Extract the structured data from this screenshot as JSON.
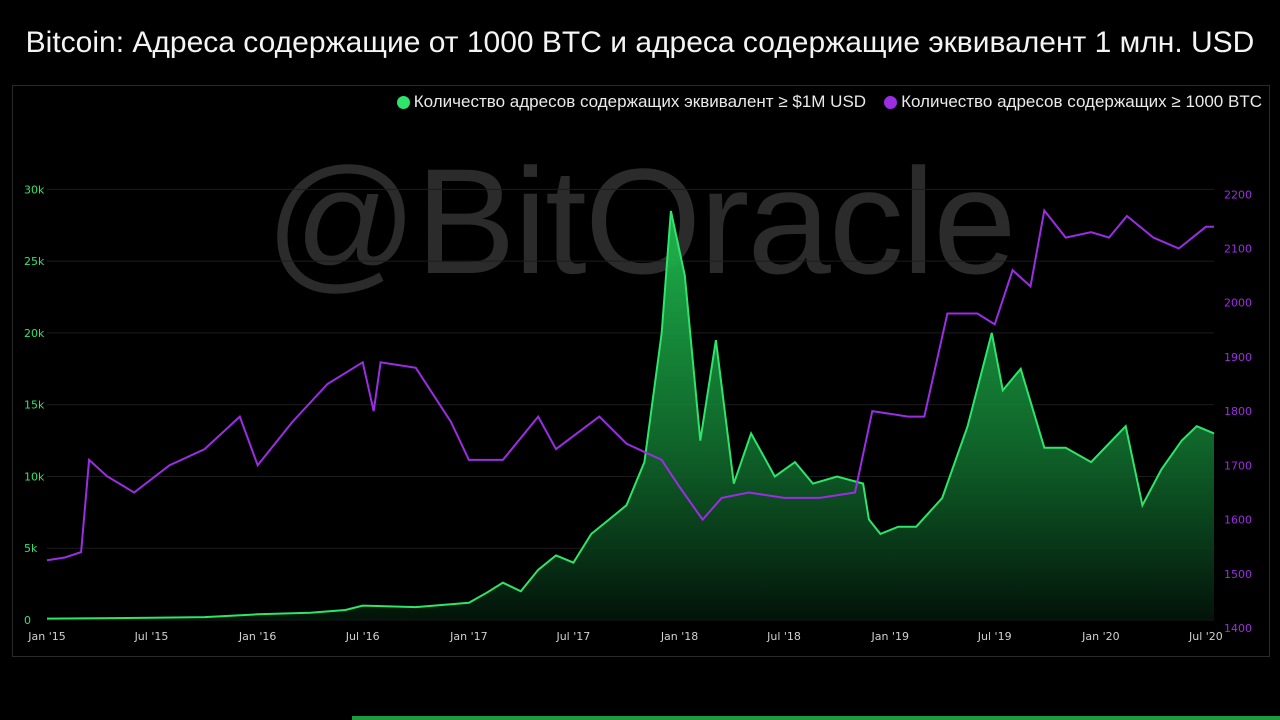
{
  "title": "Bitcoin: Адреса содержащие от 1000 BTC и адреса содержащие эквивалент 1 млн. USD",
  "watermark": "@BitOracle",
  "legend": {
    "green_label": "Количество адресов содержащих эквивалент ≥ $1M USD",
    "purple_label": "Количество адресов содержащих  ≥ 1000 BTC"
  },
  "colors": {
    "green": "#2ee46a",
    "purple": "#9b2de3",
    "background": "#000000"
  },
  "chart_data": {
    "type": "line",
    "x_ticks": [
      "Jan '15",
      "Jul '15",
      "Jan '16",
      "Jul '16",
      "Jan '17",
      "Jul '17",
      "Jan '18",
      "Jul '18",
      "Jan '19",
      "Jul '19",
      "Jan '20",
      "Jul '20"
    ],
    "y_left": {
      "ticks": [
        "0",
        "5k",
        "10k",
        "15k",
        "20k",
        "25k",
        "30k"
      ],
      "range": [
        0,
        31000
      ]
    },
    "y_right": {
      "ticks": [
        "1400",
        "1500",
        "1600",
        "1700",
        "1800",
        "1900",
        "2000",
        "2100",
        "2200"
      ],
      "range": [
        1400,
        2230
      ]
    },
    "x_range": [
      "2015-01-01",
      "2020-07-15"
    ],
    "series": [
      {
        "name": "Количество адресов содержащих эквивалент ≥ $1M USD",
        "axis": "left",
        "style": "area",
        "points": [
          [
            "2015-01-01",
            100
          ],
          [
            "2015-04-01",
            120
          ],
          [
            "2015-07-01",
            150
          ],
          [
            "2015-10-01",
            200
          ],
          [
            "2016-01-01",
            400
          ],
          [
            "2016-04-01",
            500
          ],
          [
            "2016-06-01",
            700
          ],
          [
            "2016-07-01",
            1000
          ],
          [
            "2016-10-01",
            900
          ],
          [
            "2017-01-01",
            1200
          ],
          [
            "2017-02-01",
            1900
          ],
          [
            "2017-03-01",
            2600
          ],
          [
            "2017-04-01",
            2000
          ],
          [
            "2017-05-01",
            3500
          ],
          [
            "2017-06-01",
            4500
          ],
          [
            "2017-07-01",
            4000
          ],
          [
            "2017-08-01",
            6000
          ],
          [
            "2017-09-01",
            7000
          ],
          [
            "2017-10-01",
            8000
          ],
          [
            "2017-11-01",
            11000
          ],
          [
            "2017-12-01",
            20000
          ],
          [
            "2017-12-17",
            28500
          ],
          [
            "2018-01-10",
            24000
          ],
          [
            "2018-02-06",
            12500
          ],
          [
            "2018-03-05",
            19500
          ],
          [
            "2018-04-05",
            9500
          ],
          [
            "2018-05-05",
            13000
          ],
          [
            "2018-06-15",
            10000
          ],
          [
            "2018-07-20",
            11000
          ],
          [
            "2018-08-20",
            9500
          ],
          [
            "2018-10-01",
            10000
          ],
          [
            "2018-11-15",
            9500
          ],
          [
            "2018-11-25",
            7000
          ],
          [
            "2018-12-15",
            6000
          ],
          [
            "2019-01-15",
            6500
          ],
          [
            "2019-02-15",
            6500
          ],
          [
            "2019-04-01",
            8500
          ],
          [
            "2019-05-15",
            13500
          ],
          [
            "2019-06-26",
            20000
          ],
          [
            "2019-07-15",
            16000
          ],
          [
            "2019-08-15",
            17500
          ],
          [
            "2019-09-25",
            12000
          ],
          [
            "2019-11-01",
            12000
          ],
          [
            "2019-12-15",
            11000
          ],
          [
            "2020-02-13",
            13500
          ],
          [
            "2020-03-13",
            8000
          ],
          [
            "2020-04-15",
            10500
          ],
          [
            "2020-05-20",
            12500
          ],
          [
            "2020-06-15",
            13500
          ],
          [
            "2020-07-15",
            13000
          ]
        ]
      },
      {
        "name": "Количество адресов содержащих  ≥ 1000 BTC",
        "axis": "right",
        "style": "line",
        "points": [
          [
            "2015-01-01",
            1525
          ],
          [
            "2015-02-01",
            1530
          ],
          [
            "2015-03-01",
            1540
          ],
          [
            "2015-03-15",
            1710
          ],
          [
            "2015-04-15",
            1680
          ],
          [
            "2015-06-01",
            1650
          ],
          [
            "2015-08-01",
            1700
          ],
          [
            "2015-10-01",
            1730
          ],
          [
            "2015-12-01",
            1790
          ],
          [
            "2016-01-01",
            1700
          ],
          [
            "2016-03-01",
            1780
          ],
          [
            "2016-05-01",
            1850
          ],
          [
            "2016-07-01",
            1890
          ],
          [
            "2016-07-20",
            1800
          ],
          [
            "2016-08-01",
            1890
          ],
          [
            "2016-10-01",
            1880
          ],
          [
            "2016-12-01",
            1780
          ],
          [
            "2017-01-01",
            1710
          ],
          [
            "2017-03-01",
            1710
          ],
          [
            "2017-05-01",
            1790
          ],
          [
            "2017-06-01",
            1730
          ],
          [
            "2017-08-15",
            1790
          ],
          [
            "2017-10-01",
            1740
          ],
          [
            "2017-12-01",
            1710
          ],
          [
            "2018-01-01",
            1660
          ],
          [
            "2018-02-10",
            1600
          ],
          [
            "2018-03-15",
            1640
          ],
          [
            "2018-05-01",
            1650
          ],
          [
            "2018-07-01",
            1640
          ],
          [
            "2018-09-01",
            1640
          ],
          [
            "2018-11-01",
            1650
          ],
          [
            "2018-12-01",
            1800
          ],
          [
            "2019-02-01",
            1790
          ],
          [
            "2019-03-01",
            1790
          ],
          [
            "2019-04-10",
            1980
          ],
          [
            "2019-06-01",
            1980
          ],
          [
            "2019-07-01",
            1960
          ],
          [
            "2019-08-01",
            2060
          ],
          [
            "2019-09-01",
            2030
          ],
          [
            "2019-09-25",
            2170
          ],
          [
            "2019-11-01",
            2120
          ],
          [
            "2019-12-15",
            2130
          ],
          [
            "2020-01-15",
            2120
          ],
          [
            "2020-02-15",
            2160
          ],
          [
            "2020-04-01",
            2120
          ],
          [
            "2020-05-15",
            2100
          ],
          [
            "2020-07-01",
            2140
          ],
          [
            "2020-07-15",
            2140
          ]
        ]
      }
    ]
  }
}
